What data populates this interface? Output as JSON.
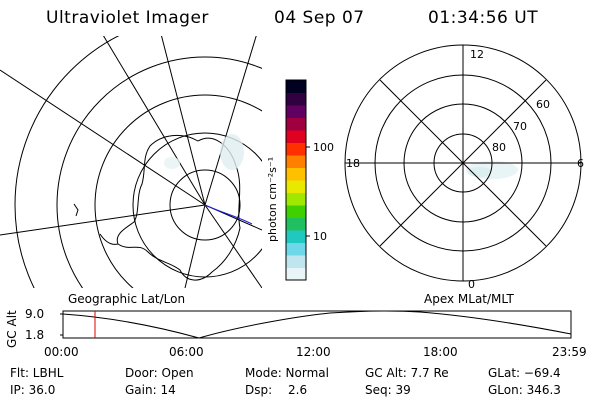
{
  "header": {
    "title": "Ultraviolet Imager",
    "date": "04 Sep 07",
    "time": "01:34:56 UT"
  },
  "maps": {
    "left_label": "Geographic Lat/Lon",
    "right_label": "Apex MLat/MLT"
  },
  "polar_grid": {
    "mlt_labels": [
      "12",
      "18",
      "6",
      "0"
    ],
    "lat_labels": [
      "60",
      "70",
      "80"
    ]
  },
  "colorbar": {
    "unit_label": "photon cm⁻²s⁻¹",
    "tick_labels": [
      "100",
      "10"
    ],
    "colors": [
      "#e8f4f8",
      "#bfe6ee",
      "#6fd8e8",
      "#20c8c0",
      "#20c060",
      "#40d000",
      "#a0e800",
      "#e8e800",
      "#ffc000",
      "#ff8000",
      "#ff3000",
      "#e00020",
      "#a00040",
      "#600060",
      "#300040",
      "#000020"
    ]
  },
  "altitude_plot": {
    "ylabel": "GC Alt",
    "yticks": [
      "9.0",
      "1.8"
    ],
    "xticks": [
      "00:00",
      "06:00",
      "12:00",
      "18:00",
      "23:59"
    ],
    "marker_color": "#e00000"
  },
  "footer": {
    "flt": "Flt: LBHL",
    "ip": "IP: 36.0",
    "door": "Door: Open",
    "gain": "Gain: 14",
    "mode": "Mode: Normal",
    "dsp_label": "Dsp:",
    "dsp_value": "2.6",
    "gcalt": "GC Alt: 7.7 Re",
    "seq": "Seq: 39",
    "glat": "GLat: −69.4",
    "glon": "GLon: 346.3"
  }
}
